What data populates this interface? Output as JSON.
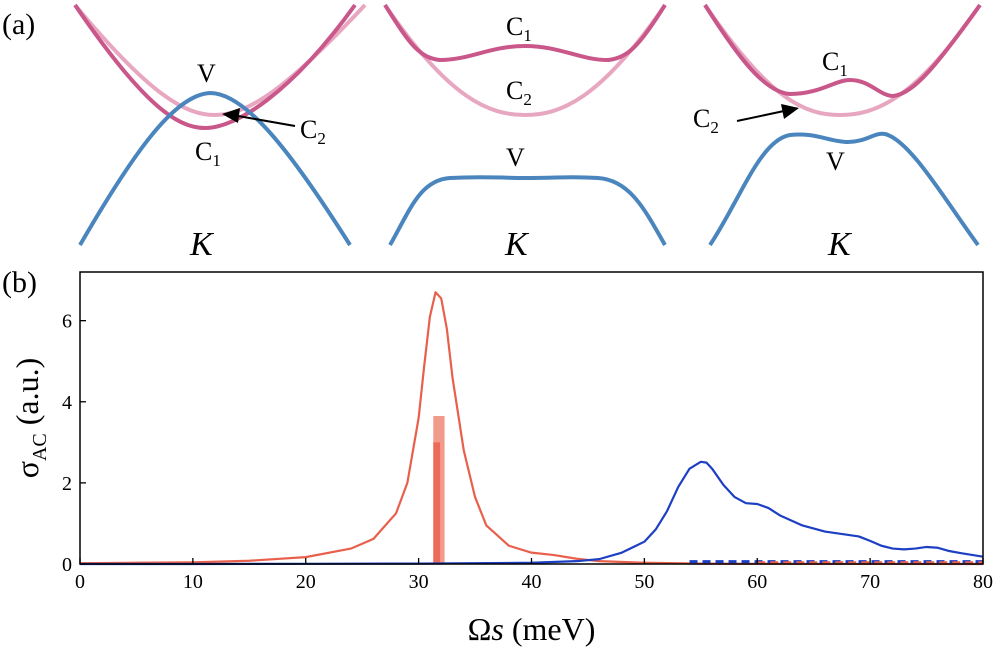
{
  "panel_a": {
    "label": "(a)",
    "colors": {
      "C1": "#c9578a",
      "C2": "#e8a7c0",
      "V": "#4a86bd"
    },
    "subpanels": [
      {
        "k_label": "K",
        "labels": {
          "V": "V",
          "C1": "C",
          "C1_sub": "1",
          "C2": "C",
          "C2_sub": "2"
        }
      },
      {
        "k_label": "K",
        "labels": {
          "V": "V",
          "C1": "C",
          "C1_sub": "1",
          "C2": "C",
          "C2_sub": "2"
        }
      },
      {
        "k_label": "K",
        "labels": {
          "V": "V",
          "C1": "C",
          "C1_sub": "1",
          "C2": "C",
          "C2_sub": "2"
        }
      }
    ]
  },
  "panel_b": {
    "label": "(b)"
  },
  "chart_data": {
    "type": "line",
    "title": "",
    "xlabel_main": "Ω",
    "xlabel_var": "s",
    "xlabel_unit": " (meV)",
    "ylabel_main": "σ",
    "ylabel_sub": "AC",
    "ylabel_unit": " (a.u.)",
    "xlim": [
      0,
      80
    ],
    "ylim": [
      0,
      7.2
    ],
    "xticks": [
      0,
      10,
      20,
      30,
      40,
      50,
      60,
      70,
      80
    ],
    "yticks": [
      0,
      2,
      4,
      6
    ],
    "series": [
      {
        "name": "red",
        "color": "#e8604c",
        "x": [
          0,
          5,
          10,
          15,
          20,
          24,
          26,
          28,
          29,
          30,
          30.5,
          31,
          31.5,
          32,
          32.5,
          33,
          34,
          35,
          36,
          38,
          40,
          42,
          44,
          46,
          50,
          55,
          60,
          70,
          80
        ],
        "y": [
          0.02,
          0.03,
          0.04,
          0.08,
          0.17,
          0.38,
          0.62,
          1.25,
          2.0,
          3.6,
          4.9,
          6.1,
          6.7,
          6.55,
          5.8,
          4.6,
          2.8,
          1.65,
          0.95,
          0.45,
          0.28,
          0.22,
          0.13,
          0.07,
          0.03,
          0.01,
          0.005,
          0.002,
          0.0
        ]
      },
      {
        "name": "blue",
        "color": "#1c3fc4",
        "x": [
          0,
          10,
          20,
          30,
          40,
          44,
          46,
          48,
          50,
          51,
          52,
          53,
          54,
          55,
          55.5,
          56,
          57,
          58,
          59,
          60,
          61,
          62,
          64,
          66,
          68,
          69,
          70,
          71,
          72,
          73,
          74,
          75,
          76,
          77,
          78,
          80
        ],
        "y": [
          0.0,
          0.0,
          0.005,
          0.01,
          0.03,
          0.07,
          0.12,
          0.28,
          0.55,
          0.85,
          1.3,
          1.9,
          2.35,
          2.52,
          2.5,
          2.35,
          1.95,
          1.65,
          1.5,
          1.48,
          1.38,
          1.2,
          0.95,
          0.8,
          0.72,
          0.68,
          0.57,
          0.45,
          0.38,
          0.36,
          0.38,
          0.42,
          0.4,
          0.32,
          0.27,
          0.18
        ]
      }
    ],
    "bars": [
      {
        "name": "red-bar-light",
        "x_start": 31.3,
        "x_end": 32.3,
        "height": 3.65,
        "color": "#f29a8c"
      },
      {
        "name": "red-bar",
        "x_start": 31.3,
        "x_end": 31.9,
        "height": 3.0,
        "color": "#ec6a5a"
      }
    ],
    "dashed_series": [
      {
        "name": "blue-dashed-baseline",
        "x": [
          54,
          80
        ],
        "y": [
          0.06,
          0.06
        ],
        "color": "#1c3fc4"
      },
      {
        "name": "red-dashed-baseline",
        "x": [
          60,
          80
        ],
        "y": [
          0.03,
          0.03
        ],
        "color": "#e8604c"
      }
    ]
  }
}
